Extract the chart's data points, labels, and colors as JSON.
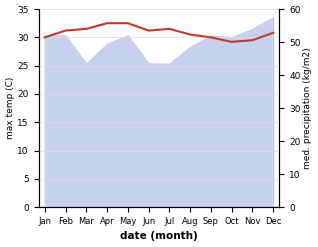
{
  "months": [
    "Jan",
    "Feb",
    "Mar",
    "Apr",
    "May",
    "Jun",
    "Jul",
    "Aug",
    "Sep",
    "Oct",
    "Nov",
    "Dec"
  ],
  "month_x": [
    0,
    1,
    2,
    3,
    4,
    5,
    6,
    7,
    8,
    9,
    10,
    11
  ],
  "temp_max": [
    30.0,
    31.2,
    31.5,
    32.5,
    32.5,
    31.2,
    31.5,
    30.5,
    30.0,
    29.2,
    29.5,
    30.8
  ],
  "precip": [
    52.0,
    52.0,
    43.5,
    49.5,
    52.0,
    43.5,
    43.5,
    48.5,
    52.0,
    51.5,
    54.0,
    57.5
  ],
  "temp_color": "#c0392b",
  "precip_fill_color": "#c8d0f0",
  "temp_ylim": [
    0,
    35
  ],
  "precip_ylim": [
    0,
    60
  ],
  "temp_yticks": [
    0,
    5,
    10,
    15,
    20,
    25,
    30,
    35
  ],
  "precip_yticks": [
    0,
    10,
    20,
    30,
    40,
    50,
    60
  ],
  "xlabel": "date (month)",
  "ylabel_left": "max temp (C)",
  "ylabel_right": "med. precipitation (kg/m2)",
  "background_color": "#ffffff"
}
